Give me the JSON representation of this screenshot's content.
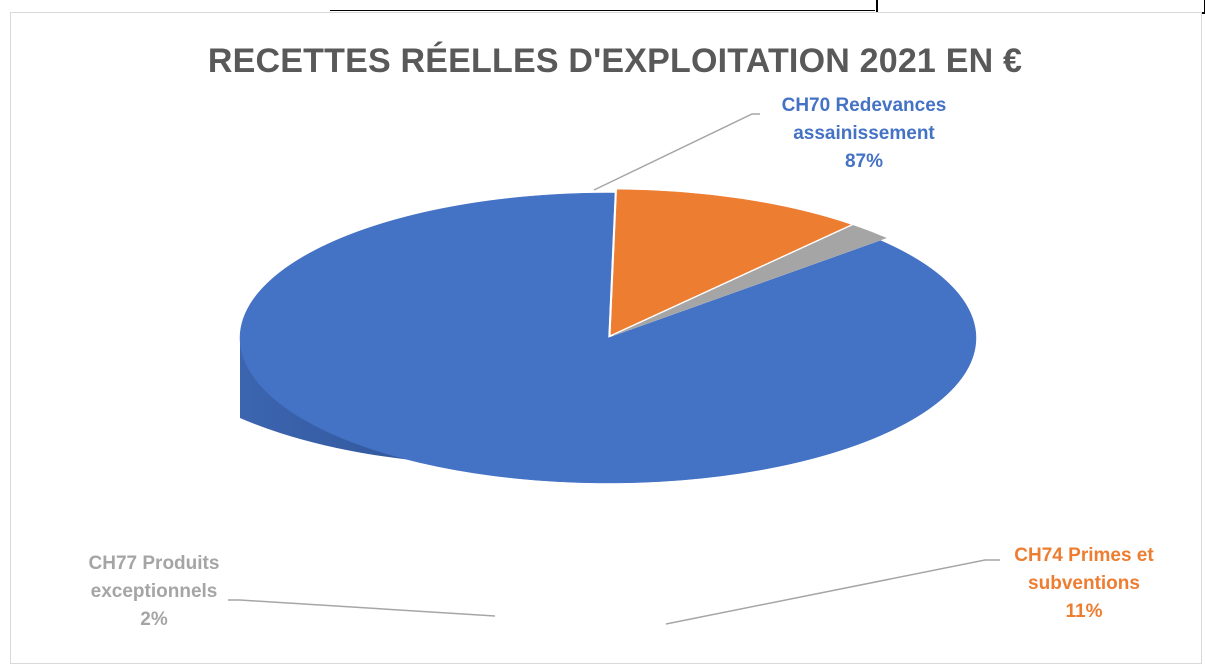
{
  "chart_data": {
    "type": "pie",
    "style": "3d",
    "title": "RECETTES RÉELLES D'EXPLOITATION 2021 EN €",
    "slices": [
      {
        "name": "CH70 Redevances assainissement",
        "pct_label": "87%",
        "value": 87,
        "color": "#4472c4"
      },
      {
        "name": "CH74 Primes et subventions",
        "pct_label": "11%",
        "value": 11,
        "color": "#ed7d31"
      },
      {
        "name": "CH77 Produits exceptionnels",
        "pct_label": "2%",
        "value": 2,
        "color": "#a5a5a5"
      }
    ],
    "labels": {
      "ch70": {
        "line1": "CH70 Redevances",
        "line2": "assainissement",
        "pct": "87%"
      },
      "ch74": {
        "line1": "CH74 Primes et",
        "line2": "subventions",
        "pct": "11%"
      },
      "ch77": {
        "line1": "CH77 Produits",
        "line2": "exceptionnels",
        "pct": "2%"
      }
    }
  }
}
